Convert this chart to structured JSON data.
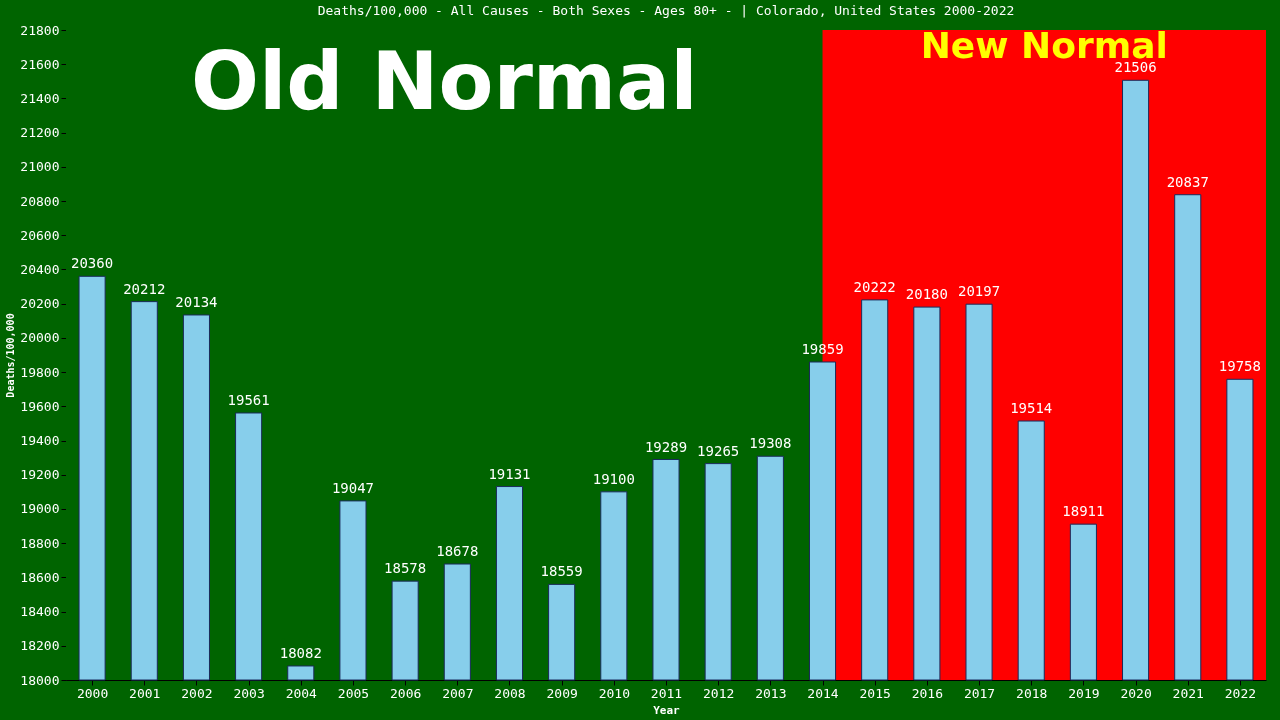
{
  "chart_data": {
    "type": "bar",
    "title": "Deaths/100,000 - All Causes - Both Sexes - Ages 80+ -  | Colorado, United States 2000-2022",
    "xlabel": "Year",
    "ylabel": "Deaths/100,000",
    "categories": [
      "2000",
      "2001",
      "2002",
      "2003",
      "2004",
      "2005",
      "2006",
      "2007",
      "2008",
      "2009",
      "2010",
      "2011",
      "2012",
      "2013",
      "2014",
      "2015",
      "2016",
      "2017",
      "2018",
      "2019",
      "2020",
      "2021",
      "2022"
    ],
    "values": [
      20360,
      20212,
      20134,
      19561,
      18082,
      19047,
      18578,
      18678,
      19131,
      18559,
      19100,
      19289,
      19265,
      19308,
      19859,
      20222,
      20180,
      20197,
      19514,
      18911,
      21506,
      20837,
      19758
    ],
    "color": "#87ceeb",
    "data_labels": true,
    "ylim": [
      18000,
      21800
    ],
    "yticks": [
      18000,
      18200,
      18400,
      18600,
      18800,
      19000,
      19200,
      19400,
      19600,
      19800,
      20000,
      20200,
      20400,
      20600,
      20800,
      21000,
      21200,
      21400,
      21600,
      21800
    ],
    "grid": false,
    "bands": [
      {
        "axis": "x",
        "from": "2000",
        "to": "2014",
        "label": "Old Normal",
        "color": "#006400"
      },
      {
        "axis": "x",
        "from": "2014",
        "to": "2022",
        "label": "New Normal",
        "color": "#ff0000"
      }
    ]
  }
}
